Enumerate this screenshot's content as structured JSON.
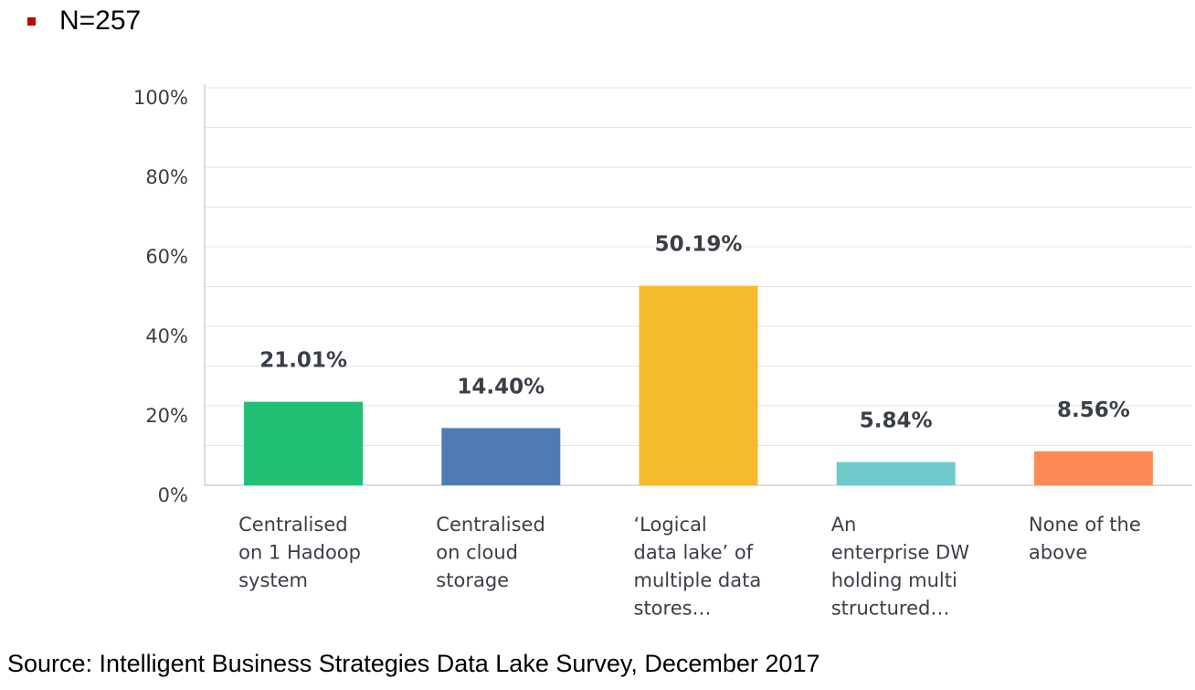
{
  "note": {
    "text": "N=257",
    "bullet_color": "#c00000"
  },
  "source": "Source: Intelligent Business Strategies Data Lake Survey, December  2017",
  "chart_data": {
    "type": "bar",
    "title": "",
    "xlabel": "",
    "ylabel": "",
    "ylim": [
      0,
      100
    ],
    "yticks": [
      "0%",
      "20%",
      "40%",
      "60%",
      "80%",
      "100%"
    ],
    "grid": true,
    "categories": [
      [
        "Centralised",
        "on 1 Hadoop",
        "system"
      ],
      [
        "Centralised",
        "on cloud",
        "storage"
      ],
      [
        "‘Logical",
        "data lake’ of",
        "multiple data",
        "stores…"
      ],
      [
        "An",
        "enterprise DW",
        "holding multi",
        "structured…"
      ],
      [
        "None of the",
        "above"
      ]
    ],
    "values": [
      21.01,
      14.4,
      50.19,
      5.84,
      8.56
    ],
    "value_labels": [
      "21.01%",
      "14.40%",
      "50.19%",
      "5.84%",
      "8.56%"
    ],
    "colors": [
      "#20bf73",
      "#4f7bb5",
      "#f5ba2e",
      "#6fcbcb",
      "#fe8b57"
    ]
  }
}
